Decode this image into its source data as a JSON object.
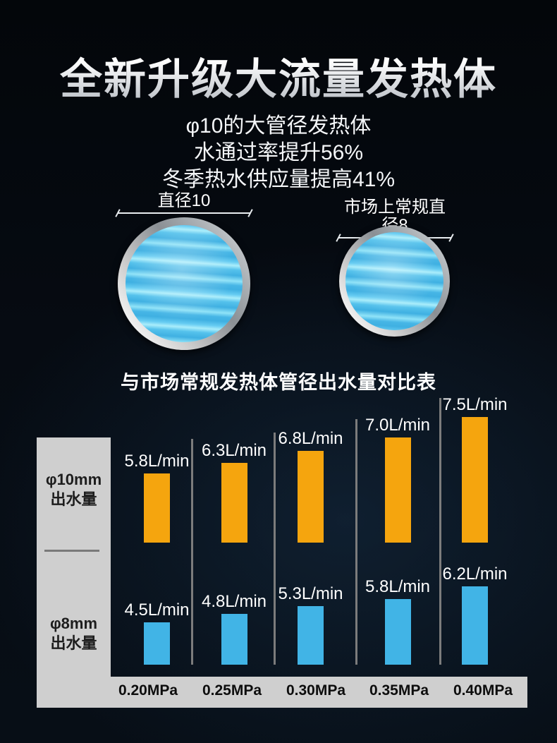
{
  "header": {
    "title": "全新升级大流量发热体",
    "subtitle_lines": [
      "φ10的大管径发热体",
      "水通过率提升56%",
      "冬季热水供应量提高41%"
    ]
  },
  "pipes": {
    "left_label": "直径10",
    "right_label": "市场上常规直径8"
  },
  "chart_data": {
    "type": "bar",
    "title": "与市场常规发热体管径出水量对比表",
    "categories": [
      "0.20MPa",
      "0.25MPa",
      "0.30MPa",
      "0.35MPa",
      "0.40MPa"
    ],
    "series": [
      {
        "name": "φ10mm出水量",
        "name_lines": [
          "φ10mm",
          "出水量"
        ],
        "unit": "L/min",
        "values": [
          5.8,
          6.3,
          6.8,
          7.0,
          7.5
        ],
        "value_labels": [
          "5.8L/min",
          "6.3L/min",
          "6.8L/min",
          "7.0L/min",
          "7.5L/min"
        ],
        "color": "#f5a50e"
      },
      {
        "name": "φ8mm出水量",
        "name_lines": [
          "φ8mm",
          "出水量"
        ],
        "unit": "L/min",
        "values": [
          4.5,
          4.8,
          5.3,
          5.8,
          6.2
        ],
        "value_labels": [
          "4.5L/min",
          "4.8L/min",
          "5.3L/min",
          "5.8L/min",
          "6.2L/min"
        ],
        "color": "#41b4e6"
      }
    ],
    "legend_position": "left-panel",
    "grid": false
  },
  "colors": {
    "orange": "#f5a50e",
    "blue": "#41b4e6",
    "panel_gray": "#cfcfcf",
    "separator_gray": "#7c7c7c",
    "background_dark": "#060b12"
  }
}
